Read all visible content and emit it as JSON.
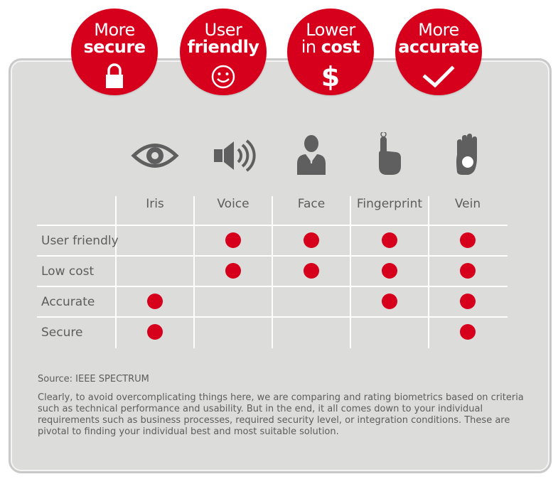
{
  "badges": [
    {
      "line1": "More",
      "line2": "secure",
      "icon": "padlock-icon"
    },
    {
      "line1": "User",
      "line2": "friendly",
      "icon": "smiley-icon"
    },
    {
      "line1": "Lower",
      "line2a": "in ",
      "line2b": "cost",
      "icon": "dollar-icon"
    },
    {
      "line1": "More",
      "line2": "accurate",
      "icon": "checkmark-icon"
    }
  ],
  "dollar": "$",
  "columns": [
    {
      "label": "Iris",
      "icon": "eye-icon"
    },
    {
      "label": "Voice",
      "icon": "speaker-icon"
    },
    {
      "label": "Face",
      "icon": "person-icon"
    },
    {
      "label": "Fingerprint",
      "icon": "fingerprint-finger-icon"
    },
    {
      "label": "Vein",
      "icon": "palm-vein-icon"
    }
  ],
  "rows": [
    {
      "label": "User friendly",
      "marks": [
        false,
        true,
        true,
        true,
        true
      ]
    },
    {
      "label": "Low cost",
      "marks": [
        false,
        true,
        true,
        true,
        true
      ]
    },
    {
      "label": "Accurate",
      "marks": [
        true,
        false,
        false,
        true,
        true
      ]
    },
    {
      "label": "Secure",
      "marks": [
        true,
        false,
        false,
        false,
        true
      ]
    }
  ],
  "source": "Source: IEEE SPECTRUM",
  "note": "Clearly, to avoid overcomplicating things here, we are comparing and rating biometrics based on criteria such as technical performance and usability. But in the end, it all comes down to your individual requirements such as business processes, required security level, or integration conditions. These are pivotal to finding your individual best and most suitable solution.",
  "colors": {
    "accent": "#d7001c",
    "panel": "#dcdcdb",
    "icon": "#5f5f5f",
    "text": "#5d5d5d"
  }
}
